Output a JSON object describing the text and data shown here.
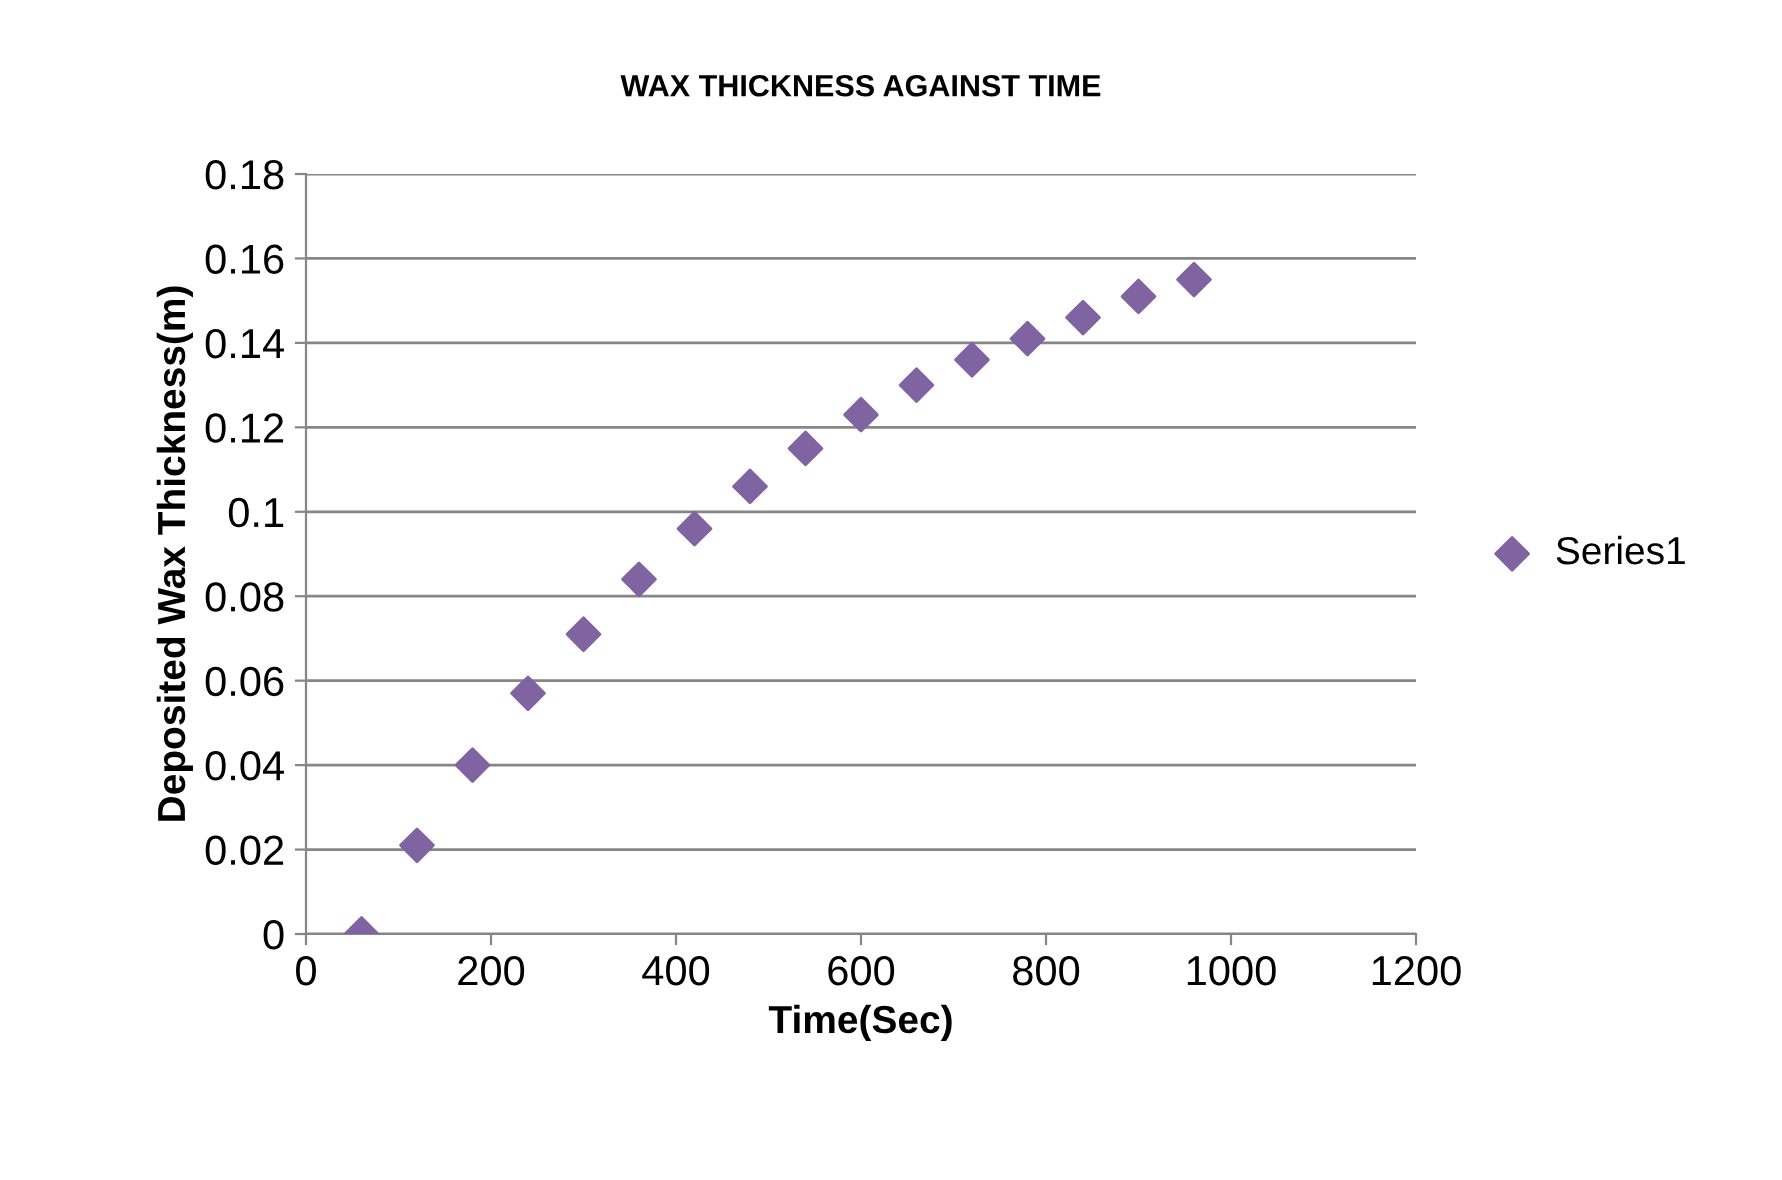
{
  "chart_data": {
    "type": "scatter",
    "title": "WAX THICKNESS AGAINST TIME",
    "xlabel": "Time(Sec)",
    "ylabel": "Deposited Wax Thickness(m)",
    "x": [
      60,
      120,
      180,
      240,
      300,
      360,
      420,
      480,
      540,
      600,
      660,
      720,
      780,
      840,
      900,
      960
    ],
    "series": [
      {
        "name": "Series1",
        "color": "#8064a2",
        "values": [
          0,
          0.021,
          0.04,
          0.057,
          0.071,
          0.084,
          0.096,
          0.106,
          0.115,
          0.123,
          0.13,
          0.136,
          0.141,
          0.146,
          0.151,
          0.155
        ]
      }
    ],
    "xlim": [
      0,
      1200
    ],
    "xticks": [
      0,
      200,
      400,
      600,
      800,
      1000,
      1200
    ],
    "ylim": [
      0,
      0.18
    ],
    "yticks": [
      0,
      0.02,
      0.04,
      0.06,
      0.08,
      0.1,
      0.12,
      0.14,
      0.16,
      0.18
    ],
    "grid": "y",
    "legend": "right",
    "marker": "diamond"
  }
}
